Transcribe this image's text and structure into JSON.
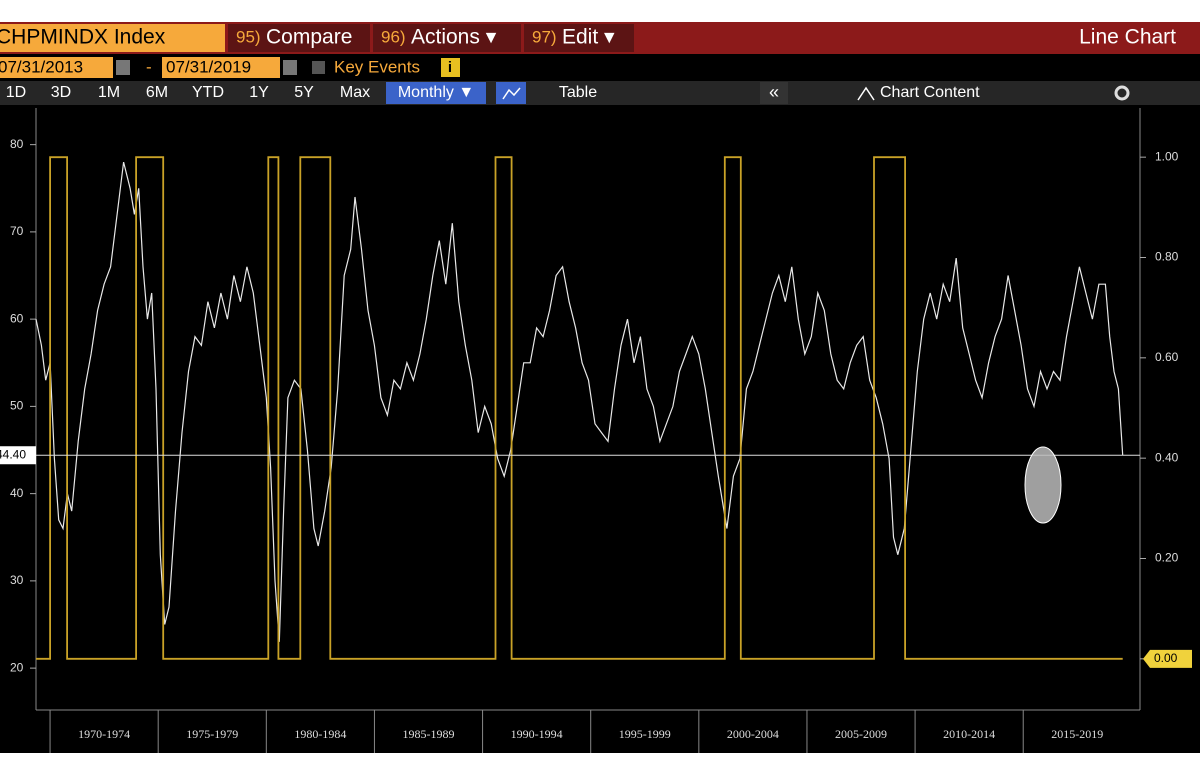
{
  "toolbar": {
    "ticker": "CHPMINDX Index",
    "menus": [
      {
        "num": "95)",
        "label": "Compare"
      },
      {
        "num": "96)",
        "label": "Actions ▾"
      },
      {
        "num": "97)",
        "label": "Edit ▾"
      }
    ],
    "view": "Line Chart",
    "start_date": "07/31/2013",
    "dash": "-",
    "end_date": "07/31/2019",
    "key_events": "Key Events",
    "info": "i",
    "ranges": [
      "1D",
      "3D",
      "1M",
      "6M",
      "YTD",
      "1Y",
      "5Y",
      "Max"
    ],
    "frequency": "Monthly ▼",
    "table": "Table",
    "collapse": "«",
    "chart_content": "Chart Content"
  },
  "chart_data": {
    "type": "line",
    "xlim": [
      1969.35,
      2020.4
    ],
    "xticks": [
      {
        "value": 1970,
        "label": "1970-1974"
      },
      {
        "value": 1975,
        "label": "1975-1979"
      },
      {
        "value": 1980,
        "label": "1980-1984"
      },
      {
        "value": 1985,
        "label": "1985-1989"
      },
      {
        "value": 1990,
        "label": "1990-1994"
      },
      {
        "value": 1995,
        "label": "1995-1999"
      },
      {
        "value": 2000,
        "label": "2000-2004"
      },
      {
        "value": 2005,
        "label": "2005-2009"
      },
      {
        "value": 2010,
        "label": "2010-2014"
      },
      {
        "value": 2015,
        "label": "2015-2019"
      }
    ],
    "ylim": [
      15.2,
      84.2
    ],
    "yticks": [
      20,
      30,
      40,
      50,
      60,
      70,
      80
    ],
    "y2lim": [
      -0.102,
      1.098
    ],
    "y2ticks": [
      {
        "value": 0,
        "label": "0.00"
      },
      {
        "value": 0.2,
        "label": "0.20"
      },
      {
        "value": 0.4,
        "label": "0.40"
      },
      {
        "value": 0.6,
        "label": "0.60"
      },
      {
        "value": 0.8,
        "label": "0.80"
      },
      {
        "value": 1,
        "label": "1.00"
      }
    ],
    "reference_line": {
      "value": 44.4,
      "label": "44.40"
    },
    "series": [
      {
        "color": "#e8e8e8",
        "x": [
          1969.35,
          1969.6,
          1969.8,
          1970.0,
          1970.2,
          1970.4,
          1970.6,
          1970.8,
          1971.0,
          1971.3,
          1971.6,
          1971.9,
          1972.2,
          1972.5,
          1972.8,
          1973.1,
          1973.4,
          1973.7,
          1973.9,
          1974.1,
          1974.3,
          1974.5,
          1974.7,
          1974.9,
          1975.1,
          1975.3,
          1975.5,
          1975.8,
          1976.1,
          1976.4,
          1976.7,
          1977.0,
          1977.3,
          1977.6,
          1977.9,
          1978.2,
          1978.5,
          1978.8,
          1979.1,
          1979.4,
          1979.7,
          1980.0,
          1980.2,
          1980.4,
          1980.6,
          1980.8,
          1981.0,
          1981.3,
          1981.6,
          1981.9,
          1982.2,
          1982.4,
          1982.7,
          1983.0,
          1983.3,
          1983.6,
          1983.9,
          1984.1,
          1984.4,
          1984.7,
          1985.0,
          1985.3,
          1985.6,
          1985.9,
          1986.2,
          1986.5,
          1986.8,
          1987.1,
          1987.4,
          1987.7,
          1988.0,
          1988.3,
          1988.6,
          1988.9,
          1989.2,
          1989.5,
          1989.8,
          1990.1,
          1990.4,
          1990.7,
          1991.0,
          1991.3,
          1991.6,
          1991.9,
          1992.2,
          1992.5,
          1992.8,
          1993.1,
          1993.4,
          1993.7,
          1994.0,
          1994.3,
          1994.6,
          1994.9,
          1995.2,
          1995.5,
          1995.8,
          1996.1,
          1996.4,
          1996.7,
          1997.0,
          1997.3,
          1997.6,
          1997.9,
          1998.2,
          1998.5,
          1998.8,
          1999.1,
          1999.4,
          1999.7,
          2000.0,
          2000.3,
          2000.6,
          2000.9,
          2001.1,
          2001.3,
          2001.6,
          2001.9,
          2002.2,
          2002.5,
          2002.8,
          2003.1,
          2003.4,
          2003.7,
          2004.0,
          2004.3,
          2004.6,
          2004.9,
          2005.2,
          2005.5,
          2005.8,
          2006.1,
          2006.4,
          2006.7,
          2007.0,
          2007.3,
          2007.6,
          2007.9,
          2008.2,
          2008.5,
          2008.8,
          2009.0,
          2009.2,
          2009.5,
          2009.8,
          2010.1,
          2010.4,
          2010.7,
          2011.0,
          2011.3,
          2011.6,
          2011.9,
          2012.2,
          2012.5,
          2012.8,
          2013.1,
          2013.4,
          2013.7,
          2014.0,
          2014.3,
          2014.6,
          2014.9,
          2015.2,
          2015.5,
          2015.8,
          2016.1,
          2016.4,
          2016.7,
          2017.0,
          2017.3,
          2017.6,
          2017.9,
          2018.2,
          2018.5,
          2018.8,
          2019.0,
          2019.2,
          2019.4,
          2019.6
        ],
        "values": [
          60,
          57,
          53,
          55,
          44,
          37,
          36,
          40,
          38,
          46,
          52,
          56,
          61,
          64,
          66,
          72,
          78,
          75,
          72,
          75,
          66,
          60,
          63,
          52,
          33,
          25,
          27,
          38,
          47,
          54,
          58,
          57,
          62,
          59,
          63,
          60,
          65,
          62,
          66,
          63,
          57,
          51,
          43,
          30,
          23,
          38,
          51,
          53,
          52,
          45,
          36,
          34,
          38,
          43,
          52,
          65,
          68,
          74,
          68,
          61,
          57,
          51,
          49,
          53,
          52,
          55,
          53,
          56,
          60,
          65,
          69,
          64,
          71,
          62,
          57,
          53,
          47,
          50,
          48,
          44,
          42,
          45,
          50,
          55,
          55,
          59,
          58,
          61,
          65,
          66,
          62,
          59,
          55,
          53,
          48,
          47,
          46,
          52,
          57,
          60,
          55,
          58,
          52,
          50,
          46,
          48,
          50,
          54,
          56,
          58,
          56,
          52,
          47,
          42,
          39,
          36,
          42,
          44,
          52,
          54,
          57,
          60,
          63,
          65,
          62,
          66,
          60,
          56,
          58,
          63,
          61,
          56,
          53,
          52,
          55,
          57,
          58,
          53,
          51,
          48,
          44,
          35,
          33,
          36,
          45,
          54,
          60,
          63,
          60,
          64,
          62,
          67,
          59,
          56,
          53,
          51,
          55,
          58,
          60,
          65,
          61,
          57,
          52,
          50,
          54,
          52,
          54,
          53,
          58,
          62,
          66,
          63,
          60,
          64,
          64,
          58,
          54,
          52,
          44.4
        ]
      },
      {
        "color": "#c9a227",
        "axis": "y2",
        "step": true,
        "x": [
          1969.35,
          1970.0,
          1970.0,
          1970.79,
          1970.79,
          1973.98,
          1973.98,
          1975.23,
          1975.23,
          1980.09,
          1980.09,
          1980.56,
          1980.56,
          1981.57,
          1981.57,
          1982.96,
          1982.96,
          1990.6,
          1990.6,
          1991.34,
          1991.34,
          2001.2,
          2001.2,
          2001.94,
          2001.94,
          2008.1,
          2008.1,
          2009.54,
          2009.54,
          2019.6
        ],
        "values": [
          0,
          0,
          1,
          1,
          0,
          0,
          1,
          1,
          0,
          0,
          1,
          1,
          0,
          0,
          1,
          1,
          0,
          0,
          1,
          1,
          0,
          0,
          1,
          1,
          0,
          0,
          1,
          1,
          0,
          0
        ]
      }
    ]
  }
}
